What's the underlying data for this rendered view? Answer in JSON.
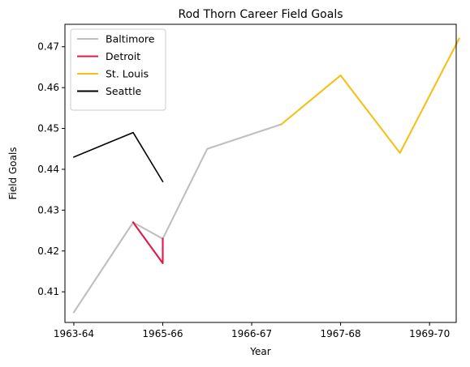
{
  "chart_data": {
    "type": "line",
    "title": "Rod Thorn Career Field Goals",
    "xlabel": "Year",
    "ylabel": "Field Goals",
    "x_ticks": [
      "1963-64",
      "1965-66",
      "1966-67",
      "1967-68",
      "1969-70"
    ],
    "x_tick_positions": [
      0,
      1,
      2,
      3,
      4
    ],
    "xlim": [
      -0.1,
      4.3
    ],
    "ylim": [
      0.4025,
      0.4755
    ],
    "y_ticks": [
      0.41,
      0.42,
      0.43,
      0.44,
      0.45,
      0.46,
      0.47
    ],
    "y_tick_labels": [
      "0.41",
      "0.42",
      "0.43",
      "0.44",
      "0.45",
      "0.46",
      "0.47"
    ],
    "grid": false,
    "legend_position": "top-left",
    "series": [
      {
        "name": "Baltimore",
        "color": "#bfbfbf",
        "points": [
          [
            0,
            0.405
          ],
          [
            0.667,
            0.427
          ],
          [
            0.667,
            0.427
          ],
          [
            1.0,
            0.423
          ],
          [
            1.0,
            0.423
          ],
          [
            1.5,
            0.445
          ],
          [
            2.333,
            0.451
          ]
        ]
      },
      {
        "name": "Detroit",
        "color": "#e0194a",
        "points": [
          [
            0.667,
            0.427
          ],
          [
            1.0,
            0.417
          ],
          [
            1.0,
            0.423
          ]
        ]
      },
      {
        "name": "St. Louis",
        "color": "#f5c018",
        "points": [
          [
            2.333,
            0.451
          ],
          [
            3.0,
            0.463
          ],
          [
            3.667,
            0.444
          ],
          [
            4.333,
            0.472
          ]
        ]
      },
      {
        "name": "Seattle",
        "color": "#000000",
        "points": [
          [
            0,
            0.443
          ],
          [
            0.667,
            0.449
          ],
          [
            1.0,
            0.437
          ]
        ]
      }
    ]
  }
}
